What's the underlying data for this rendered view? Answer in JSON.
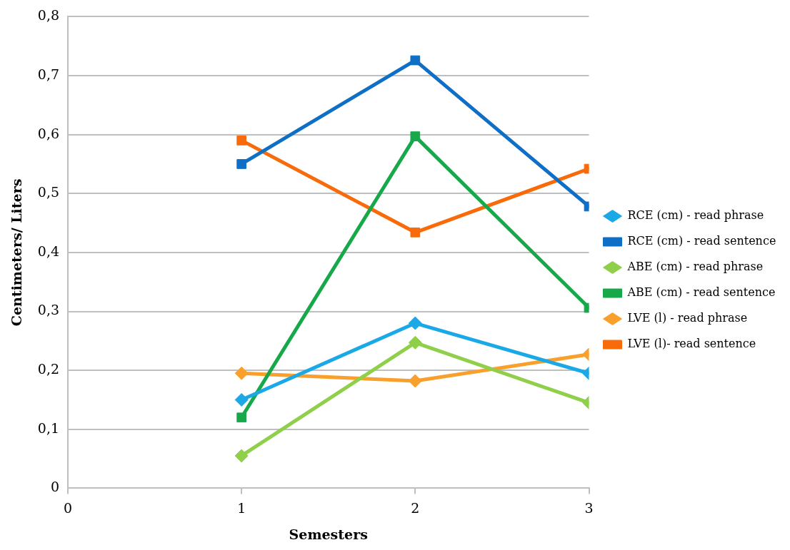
{
  "chart_data": {
    "type": "line",
    "xlabel": "Semesters",
    "ylabel": "Centimeters/ Liters",
    "x": [
      1,
      2,
      3
    ],
    "series": [
      {
        "name": "RCE (cm) - read phrase",
        "color": "#1aa9e6",
        "marker": "diamond",
        "values": [
          0.15,
          0.28,
          0.195
        ]
      },
      {
        "name": "RCE (cm) - read sentence",
        "color": "#0f6fc6",
        "marker": "square",
        "values": [
          0.55,
          0.726,
          0.478
        ]
      },
      {
        "name": "ABE (cm) - read phrase",
        "color": "#8fcf4a",
        "marker": "diamond",
        "values": [
          0.055,
          0.247,
          0.145
        ]
      },
      {
        "name": "ABE (cm) - read sentence",
        "color": "#17a84a",
        "marker": "square",
        "values": [
          0.12,
          0.597,
          0.306
        ]
      },
      {
        "name": "LVE (l) - read phrase",
        "color": "#f9a02c",
        "marker": "diamond",
        "values": [
          0.195,
          0.182,
          0.227
        ]
      },
      {
        "name": "LVE (l)- read sentence",
        "color": "#f96a0a",
        "marker": "square",
        "values": [
          0.59,
          0.434,
          0.542
        ]
      }
    ],
    "xlim": [
      0,
      3
    ],
    "xticks": [
      0,
      1,
      2,
      3
    ],
    "ylim": [
      0,
      0.8
    ],
    "yticks": [
      0,
      {
        "value": 0.1,
        "label": "0,1"
      },
      {
        "value": 0.2,
        "label": "0,2"
      },
      {
        "value": 0.3,
        "label": "0,3"
      },
      {
        "value": 0.4,
        "label": "0,4"
      },
      {
        "value": 0.5,
        "label": "0,5"
      },
      {
        "value": 0.6,
        "label": "0,6"
      },
      {
        "value": 0.7,
        "label": "0,7"
      },
      {
        "value": 0.8,
        "label": "0,8"
      }
    ],
    "grid": "y",
    "legend": "right",
    "line_style": "solid"
  }
}
